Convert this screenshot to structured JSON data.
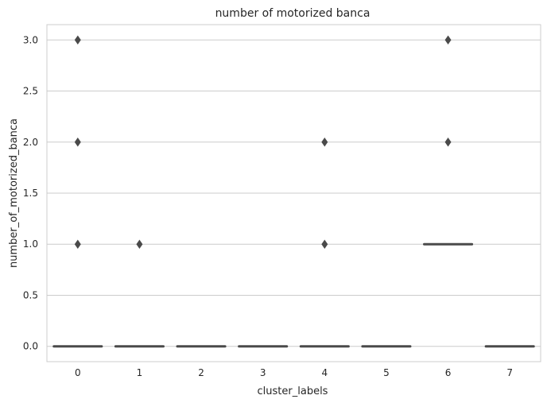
{
  "chart_data": {
    "type": "box",
    "title": "number of motorized banca",
    "xlabel": "cluster_labels",
    "ylabel": "number_of_motorized_banca",
    "categories": [
      "0",
      "1",
      "2",
      "3",
      "4",
      "5",
      "6",
      "7"
    ],
    "y_ticks": [
      "0.0",
      "0.5",
      "1.0",
      "1.5",
      "2.0",
      "2.5",
      "3.0"
    ],
    "y_tick_values": [
      0.0,
      0.5,
      1.0,
      1.5,
      2.0,
      2.5,
      3.0
    ],
    "ylim": [
      -0.15,
      3.15
    ],
    "grid": "horizontal",
    "boxes": [
      {
        "category": "0",
        "median": 0,
        "q1": 0,
        "q3": 0,
        "whisker_low": 0,
        "whisker_high": 0,
        "outliers": [
          1,
          2,
          3
        ]
      },
      {
        "category": "1",
        "median": 0,
        "q1": 0,
        "q3": 0,
        "whisker_low": 0,
        "whisker_high": 0,
        "outliers": [
          1
        ]
      },
      {
        "category": "2",
        "median": 0,
        "q1": 0,
        "q3": 0,
        "whisker_low": 0,
        "whisker_high": 0,
        "outliers": []
      },
      {
        "category": "3",
        "median": 0,
        "q1": 0,
        "q3": 0,
        "whisker_low": 0,
        "whisker_high": 0,
        "outliers": []
      },
      {
        "category": "4",
        "median": 0,
        "q1": 0,
        "q3": 0,
        "whisker_low": 0,
        "whisker_high": 0,
        "outliers": [
          1,
          2
        ]
      },
      {
        "category": "5",
        "median": 0,
        "q1": 0,
        "q3": 0,
        "whisker_low": 0,
        "whisker_high": 0,
        "outliers": []
      },
      {
        "category": "6",
        "median": 1,
        "q1": 1,
        "q3": 1,
        "whisker_low": 1,
        "whisker_high": 1,
        "outliers": [
          2,
          3
        ]
      },
      {
        "category": "7",
        "median": 0,
        "q1": 0,
        "q3": 0,
        "whisker_low": 0,
        "whisker_high": 0,
        "outliers": []
      }
    ],
    "colors": {
      "box": "#4a4a4a",
      "grid": "#cccccc",
      "frame": "#cccccc"
    }
  }
}
